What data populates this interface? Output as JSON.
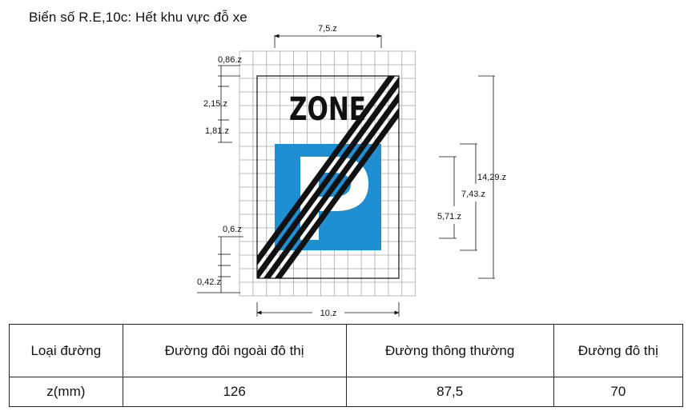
{
  "title": "Biển số R.E,10c: Hết khu vực đỗ xe",
  "sign": {
    "zone_text": "ZONE",
    "parking_letter": "P",
    "colors": {
      "blue": "#1d8fd2",
      "black": "#111111",
      "grid": "#a8a8a8",
      "white": "#ffffff"
    }
  },
  "dimensions": {
    "top_width": "7,5.z",
    "bottom_width": "10.z",
    "top_margin": "0,86.z",
    "zone_height": "2,15.z",
    "gap_below_zone": "1,81.z",
    "stripe_offset": "0,6.z",
    "stripe_width": "0,42.z",
    "total_height": "14,29.z",
    "blue_height": "7,43.z",
    "p_height": "5,71.z"
  },
  "table": {
    "headers": [
      "Loại đường",
      "Đường đôi ngoài đô thị",
      "Đường thông thường",
      "Đường đô thị"
    ],
    "row": [
      "z(mm)",
      "126",
      "87,5",
      "70"
    ]
  }
}
